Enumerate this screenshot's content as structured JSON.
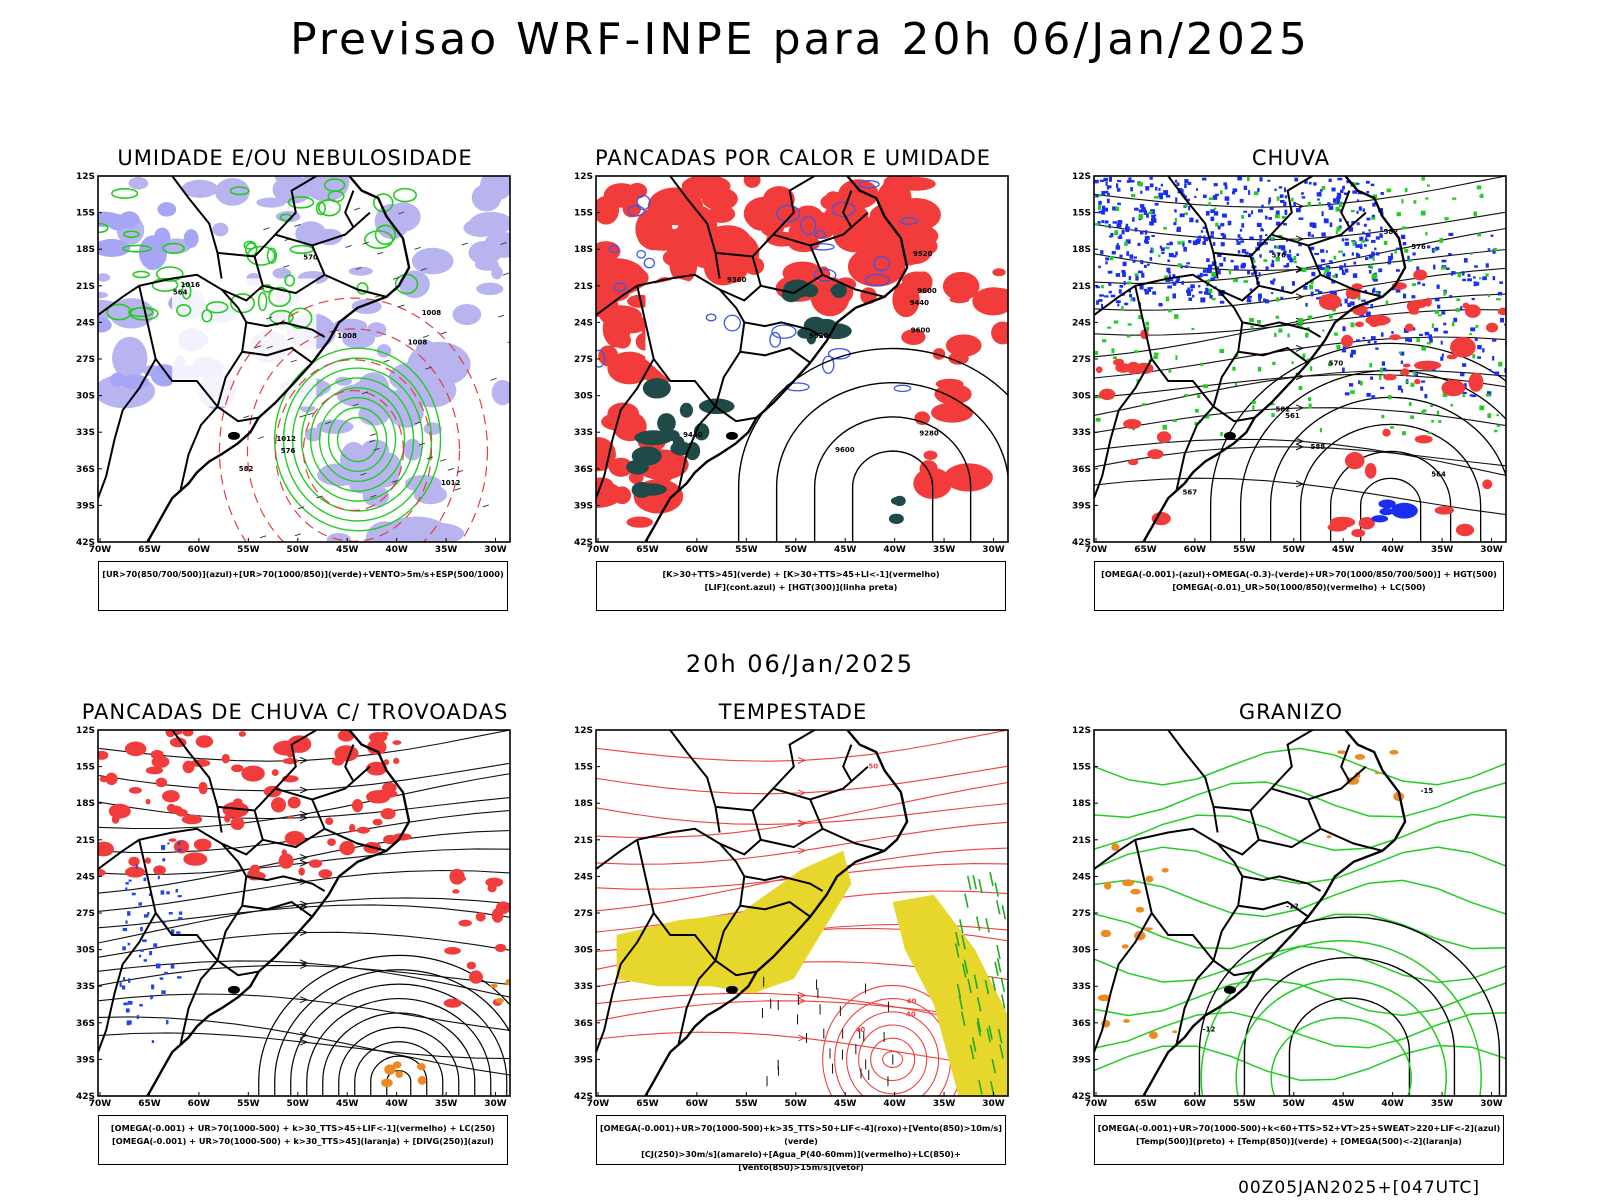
{
  "title": "Previsao WRF-INPE  para 20h 06/Jan/2025",
  "mid_title": "20h 06/Jan/2025",
  "footer": "00Z05JAN2025+[047UTC]",
  "lat_labels": [
    "12S",
    "15S",
    "18S",
    "21S",
    "24S",
    "27S",
    "30S",
    "33S",
    "36S",
    "39S",
    "42S"
  ],
  "lon_labels": [
    "70W",
    "65W",
    "60W",
    "55W",
    "50W",
    "45W",
    "40W",
    "35W",
    "30W"
  ],
  "panels": [
    {
      "id": "umidade",
      "title": "UMIDADE E/OU NEBULOSIDADE",
      "legend": [
        "[UR>70(850/700/500)](azul)+[UR>70(1000/850)](verde)+VENTO>5m/s+ESP(500/1000)"
      ],
      "contour_labels": [
        "1008",
        "1008",
        "1012",
        "1016",
        "564",
        "570",
        "576",
        "582",
        "1008",
        "1012"
      ]
    },
    {
      "id": "pancadas-calor",
      "title": "PANCADAS POR CALOR E UMIDADE",
      "legend": [
        "[K>30+TTS>45](verde) + [K>30+TTS>45+LI<-1](vermelho)",
        "[LIF](cont.azul) + [HGT(300)](linha preta)"
      ],
      "contour_labels": [
        "9600",
        "9600",
        "9520",
        "9440",
        "9360",
        "9280",
        "9600",
        "9520",
        "9440"
      ]
    },
    {
      "id": "chuva",
      "title": "CHUVA",
      "legend": [
        "[OMEGA(-0.001)-(azul)+OMEGA(-0.3)-(verde)+UR>70(1000/850/700/500)] + HGT(500)",
        "[OMEGA(-0.01)_UR>50(1000/850)(vermelho) + LC(500)"
      ],
      "contour_labels": [
        "588",
        "582",
        "576",
        "570",
        "567",
        "564",
        "561",
        "582",
        "576"
      ]
    },
    {
      "id": "pancadas-trovoadas",
      "title": "PANCADAS DE CHUVA C/ TROVOADAS",
      "legend": [
        "[OMEGA(-0.001) + UR>70(1000-500) + k>30_TTS>45+LIF<-1](vermelho) + LC(250)",
        "[OMEGA(-0.001) + UR>70(1000-500) + k>30_TTS>45](laranja) + [DIVG(250)](azul)"
      ],
      "contour_labels": []
    },
    {
      "id": "tempestade",
      "title": "TEMPESTADE",
      "legend": [
        "[OMEGA(-0.001)+UR>70(1000-500)+k>35_TTS>50+LIF<-4](roxo)+[Vento(850)>10m/s](verde)",
        "[CJ(250)>30m/s](amarelo)+[Agua_P(40-60mm)](vermelho)+LC(850)+[Vento(850)>15m/s](vetor)"
      ],
      "contour_labels": [
        "40",
        "50",
        "40",
        "40"
      ]
    },
    {
      "id": "granizo",
      "title": "GRANIZO",
      "legend": [
        "[OMEGA(-0.001)+UR>70(1000-500)+k<60+TTS>52+VT>25+SWEAT>220+LIF<-2](azul)",
        "[Temp(500)](preto) + [Temp(850)](verde) + [OMEGA(500)<-2](laranja)"
      ],
      "contour_labels": [
        "-12",
        "-15",
        "-12"
      ]
    }
  ]
}
